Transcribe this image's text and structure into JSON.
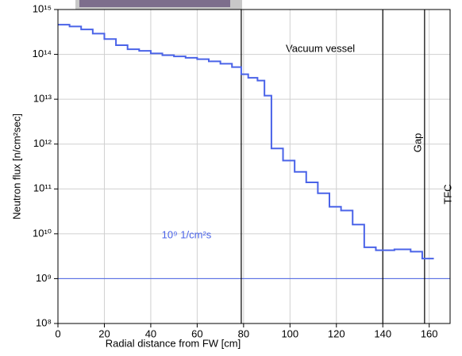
{
  "chart_data": {
    "type": "line",
    "step": "post",
    "x_label": "Radial distance from FW [cm]",
    "y_label": "Neutron flux [n/cm²sec]",
    "xlim": [
      0,
      169
    ],
    "ylim": [
      100000000.0,
      1000000000000000.0
    ],
    "log_y": true,
    "grid": true,
    "xticks": [
      0,
      20,
      40,
      60,
      80,
      100,
      120,
      140,
      160
    ],
    "yticks": [
      {
        "value": 100000000.0,
        "label": "10⁸"
      },
      {
        "value": 1000000000.0,
        "label": "10⁹"
      },
      {
        "value": 10000000000.0,
        "label": "10¹⁰"
      },
      {
        "value": 100000000000.0,
        "label": "10¹¹"
      },
      {
        "value": 1000000000000.0,
        "label": "10¹²"
      },
      {
        "value": 10000000000000.0,
        "label": "10¹³"
      },
      {
        "value": 100000000000000.0,
        "label": "10¹⁴"
      },
      {
        "value": 1000000000000000.0,
        "label": "10¹⁵"
      }
    ],
    "series": [
      {
        "color": "#4a63e8",
        "x": [
          0,
          5,
          10,
          15,
          20,
          25,
          30,
          35,
          40,
          45,
          50,
          55,
          60,
          65,
          70,
          75,
          79,
          82,
          86,
          89,
          92,
          97,
          102,
          107,
          112,
          117,
          122,
          127,
          132,
          137,
          145,
          152,
          157,
          162
        ],
        "values": [
          460000000000000.0,
          420000000000000.0,
          360000000000000.0,
          290000000000000.0,
          220000000000000.0,
          160000000000000.0,
          130000000000000.0,
          120000000000000.0,
          105000000000000.0,
          96000000000000.0,
          90000000000000.0,
          84000000000000.0,
          78000000000000.0,
          70000000000000.0,
          62000000000000.0,
          52000000000000.0,
          36000000000000.0,
          30000000000000.0,
          26000000000000.0,
          12000000000000.0,
          800000000000.0,
          430000000000.0,
          240000000000.0,
          140000000000.0,
          80000000000.0,
          40000000000.0,
          33000000000.0,
          16000000000.0,
          5000000000.0,
          4300000000.0,
          4500000000.0,
          4000000000.0,
          2800000000.0,
          2800000000.0
        ]
      }
    ],
    "vlines": [
      79,
      140,
      158
    ],
    "hline": {
      "value": 1000000000.0,
      "color": "#4a63e8",
      "label": "10⁹ 1/cm²s"
    },
    "annotations": [
      "Vacuum vessel",
      "Gap",
      "TFC"
    ]
  }
}
